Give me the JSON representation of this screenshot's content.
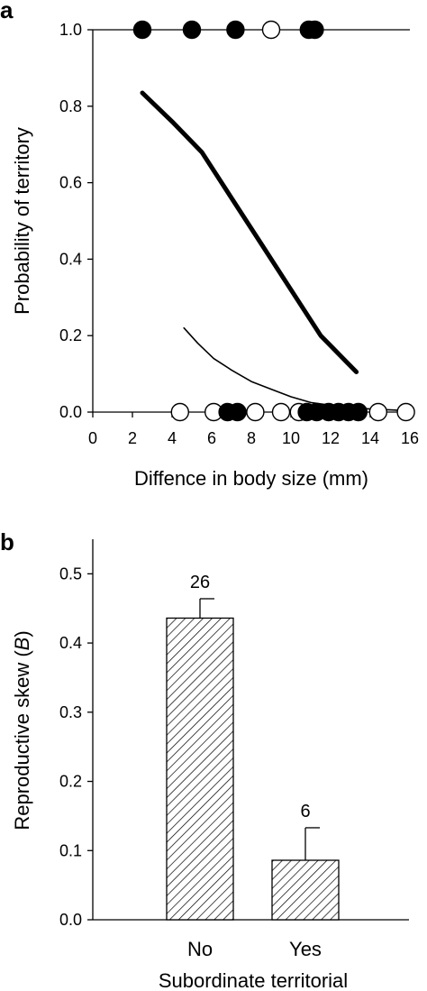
{
  "chart_data": [
    {
      "panel_label": "a",
      "type": "scatter",
      "xlabel": "Diffence in body size (mm)",
      "ylabel": "Probability of territory",
      "xlim": [
        0,
        16
      ],
      "ylim": [
        0,
        1.0
      ],
      "x_ticks": [
        "0",
        "2",
        "4",
        "6",
        "8",
        "10",
        "12",
        "14",
        "16"
      ],
      "y_ticks": [
        "0.0",
        "0.2",
        "0.4",
        "0.6",
        "0.8",
        "1.0"
      ],
      "grid": false,
      "curves": [
        {
          "style": "thick",
          "x": [
            2.5,
            4.0,
            5.5,
            7.0,
            8.5,
            10.0,
            11.5,
            13.3
          ],
          "y": [
            0.835,
            0.76,
            0.68,
            0.56,
            0.44,
            0.32,
            0.2,
            0.105
          ]
        },
        {
          "style": "thin",
          "x": [
            4.6,
            5.3,
            6.1,
            7.0,
            8.0,
            9.0,
            10.0,
            11.0,
            12.0,
            13.0,
            14.0,
            15.8
          ],
          "y": [
            0.22,
            0.18,
            0.14,
            0.11,
            0.08,
            0.06,
            0.04,
            0.025,
            0.018,
            0.012,
            0.008,
            0.004
          ]
        }
      ],
      "points": [
        {
          "x": 2.5,
          "y": 1.0,
          "filled": true
        },
        {
          "x": 5.0,
          "y": 1.0,
          "filled": true
        },
        {
          "x": 7.2,
          "y": 1.0,
          "filled": true
        },
        {
          "x": 9.0,
          "y": 1.0,
          "filled": false
        },
        {
          "x": 10.9,
          "y": 1.0,
          "filled": true
        },
        {
          "x": 11.2,
          "y": 1.0,
          "filled": true
        },
        {
          "x": 4.4,
          "y": 0.0,
          "filled": false
        },
        {
          "x": 6.1,
          "y": 0.0,
          "filled": false
        },
        {
          "x": 6.8,
          "y": 0.0,
          "filled": true
        },
        {
          "x": 7.3,
          "y": 0.0,
          "filled": true
        },
        {
          "x": 8.2,
          "y": 0.0,
          "filled": false
        },
        {
          "x": 9.5,
          "y": 0.0,
          "filled": false
        },
        {
          "x": 10.4,
          "y": 0.0,
          "filled": false
        },
        {
          "x": 10.8,
          "y": 0.0,
          "filled": true
        },
        {
          "x": 11.3,
          "y": 0.0,
          "filled": true
        },
        {
          "x": 11.9,
          "y": 0.0,
          "filled": true
        },
        {
          "x": 12.4,
          "y": 0.0,
          "filled": true
        },
        {
          "x": 12.9,
          "y": 0.0,
          "filled": true
        },
        {
          "x": 13.4,
          "y": 0.0,
          "filled": true
        },
        {
          "x": 14.4,
          "y": 0.0,
          "filled": false
        },
        {
          "x": 15.8,
          "y": 0.0,
          "filled": false
        }
      ]
    },
    {
      "panel_label": "b",
      "type": "bar",
      "categories": [
        "No",
        "Yes"
      ],
      "values": [
        0.436,
        0.086
      ],
      "errors": [
        0.028,
        0.047
      ],
      "data_labels": [
        "26",
        "6"
      ],
      "xlabel": "Subordinate territorial",
      "ylabel_parts": [
        "Reproductive skew (",
        "B",
        ")"
      ],
      "ylim": [
        0,
        0.55
      ],
      "y_ticks": [
        "0.0",
        "0.1",
        "0.2",
        "0.3",
        "0.4",
        "0.5"
      ],
      "bar_fill": "hatched",
      "grid": false
    }
  ]
}
